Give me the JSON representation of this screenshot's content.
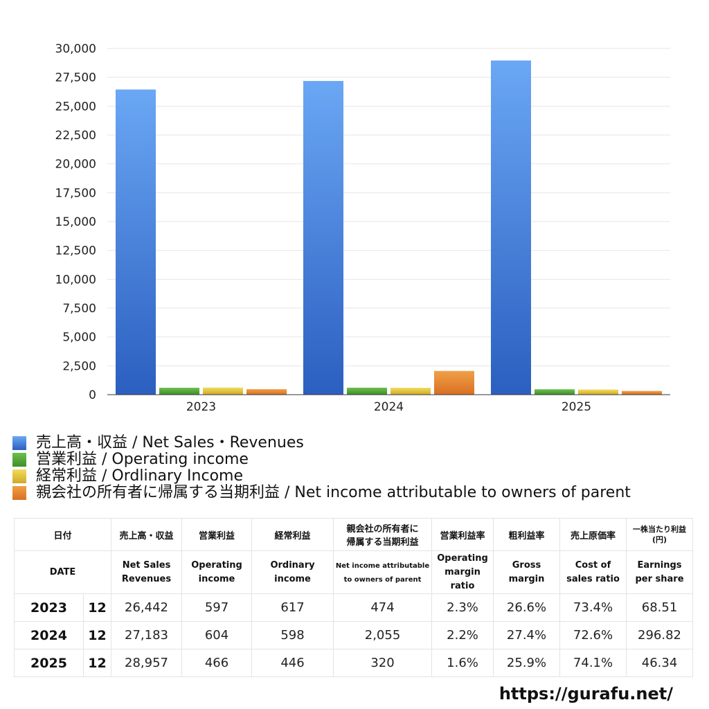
{
  "chart_data": {
    "type": "bar",
    "categories": [
      "2023",
      "2024",
      "2025"
    ],
    "series": [
      {
        "name": "売上高・収益 / Net Sales・Revenues",
        "values": [
          26442,
          27183,
          28957
        ],
        "color_top": "#6aa7f4",
        "color_bottom": "#2b5fc0"
      },
      {
        "name": "営業利益 / Operating income",
        "values": [
          597,
          604,
          466
        ],
        "color_top": "#6cc04a",
        "color_bottom": "#3f8f2c"
      },
      {
        "name": "経常利益 / Ordlinary Income",
        "values": [
          617,
          598,
          446
        ],
        "color_top": "#f2dc5a",
        "color_bottom": "#cfa92a"
      },
      {
        "name": "親会社の所有者に帰属する当期利益 / Net income attributable to owners of parent",
        "values": [
          474,
          2055,
          320
        ],
        "color_top": "#f0a048",
        "color_bottom": "#d96f22"
      }
    ],
    "ylim": [
      0,
      30000
    ],
    "yticks": [
      "0",
      "2,500",
      "5,000",
      "7,500",
      "10,000",
      "12,500",
      "15,000",
      "17,500",
      "20,000",
      "22,500",
      "25,000",
      "27,500",
      "30,000"
    ],
    "grid": true,
    "legend_position": "bottom-left"
  },
  "table": {
    "header_ja": {
      "date": "日付",
      "net_sales": "売上高・収益",
      "operating_income": "営業利益",
      "ordinary_income": "経常利益",
      "net_income_line1": "親会社の所有者に",
      "net_income_line2": "帰属する当期利益",
      "operating_margin": "営業利益率",
      "gross_margin": "粗利益率",
      "cost_ratio": "売上原価率",
      "eps_line1": "一株当たり利益",
      "eps_line2": "(円)"
    },
    "header_en": {
      "date": "DATE",
      "net_sales_line1": "Net Sales",
      "net_sales_line2": "Revenues",
      "operating_income_line1": "Operating",
      "operating_income_line2": "income",
      "ordinary_income_line1": "Ordinary",
      "ordinary_income_line2": "income",
      "net_income_line1": "Net income attributable",
      "net_income_line2": "to owners of parent",
      "operating_margin_line1": "Operating",
      "operating_margin_line2": "margin",
      "operating_margin_line3": "ratio",
      "gross_margin_line1": "Gross",
      "gross_margin_line2": "margin",
      "cost_ratio_line1": "Cost of",
      "cost_ratio_line2": "sales ratio",
      "eps_line1": "Earnings",
      "eps_line2": "per share"
    },
    "rows": [
      {
        "year": "2023",
        "month": "12",
        "net_sales": "26,442",
        "operating_income": "597",
        "ordinary_income": "617",
        "net_income": "474",
        "operating_margin": "2.3%",
        "gross_margin": "26.6%",
        "cost_ratio": "73.4%",
        "eps": "68.51"
      },
      {
        "year": "2024",
        "month": "12",
        "net_sales": "27,183",
        "operating_income": "604",
        "ordinary_income": "598",
        "net_income": "2,055",
        "operating_margin": "2.2%",
        "gross_margin": "27.4%",
        "cost_ratio": "72.6%",
        "eps": "296.82"
      },
      {
        "year": "2025",
        "month": "12",
        "net_sales": "28,957",
        "operating_income": "466",
        "ordinary_income": "446",
        "net_income": "320",
        "operating_margin": "1.6%",
        "gross_margin": "25.9%",
        "cost_ratio": "74.1%",
        "eps": "46.34"
      }
    ]
  },
  "footer": {
    "url": "https://gurafu.net/"
  }
}
